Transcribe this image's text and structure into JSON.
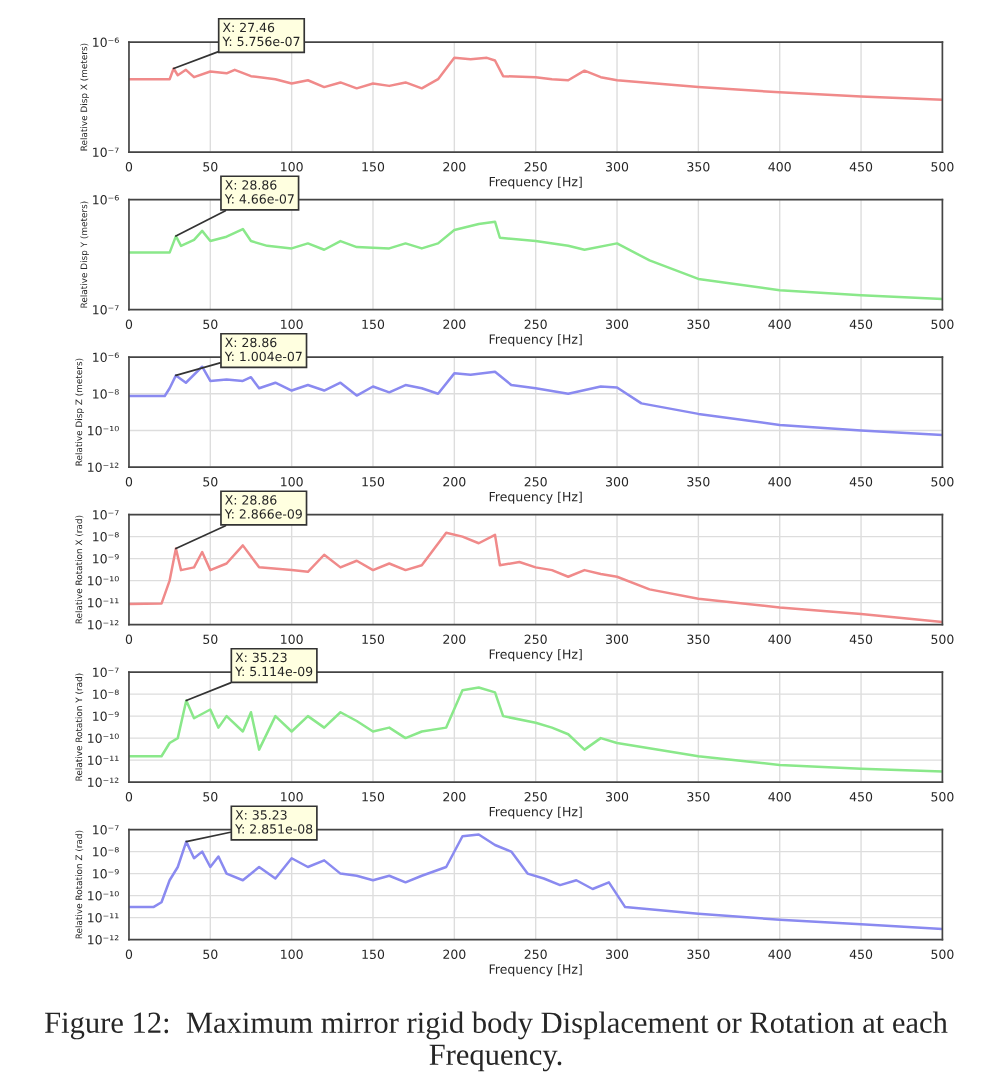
{
  "chart_data": [
    {
      "type": "line",
      "xlabel": "Frequency [Hz]",
      "ylabel": "Relative Disp X (meters)",
      "log": "y",
      "grid": true,
      "xlim": [
        0,
        500
      ],
      "xticks": [
        0,
        50,
        100,
        150,
        200,
        250,
        300,
        350,
        400,
        450,
        500
      ],
      "ylim": [
        1e-07,
        1e-06
      ],
      "yticks": [
        {
          "value": 1e-07,
          "label": "10⁻⁷"
        },
        {
          "value": 1e-06,
          "label": "10⁻⁶"
        }
      ],
      "series": [
        {
          "color": "#f08a8a",
          "x": [
            0,
            25,
            27.46,
            30,
            35,
            40,
            50,
            60,
            65,
            75,
            90,
            100,
            110,
            120,
            130,
            140,
            150,
            160,
            170,
            180,
            190,
            200,
            210,
            220,
            225,
            230,
            250,
            260,
            270,
            280,
            290,
            300,
            350,
            400,
            450,
            500
          ],
          "values": [
            4.6e-07,
            4.6e-07,
            5.756e-07,
            5e-07,
            5.6e-07,
            4.8e-07,
            5.4e-07,
            5.2e-07,
            5.6e-07,
            4.9e-07,
            4.6e-07,
            4.2e-07,
            4.5e-07,
            3.9e-07,
            4.3e-07,
            3.8e-07,
            4.2e-07,
            4e-07,
            4.3e-07,
            3.8e-07,
            4.6e-07,
            7.2e-07,
            7e-07,
            7.2e-07,
            6.8e-07,
            4.9e-07,
            4.8e-07,
            4.6e-07,
            4.5e-07,
            5.5e-07,
            4.8e-07,
            4.5e-07,
            3.9e-07,
            3.5e-07,
            3.2e-07,
            3e-07
          ]
        }
      ],
      "annotations": [
        {
          "text": "X: 27.46\nY: 5.756e-07",
          "x": 27.46,
          "y": 5.756e-07
        }
      ]
    },
    {
      "type": "line",
      "xlabel": "Frequency [Hz]",
      "ylabel": "Relative Disp Y (meters)",
      "log": "y",
      "grid": true,
      "xlim": [
        0,
        500
      ],
      "xticks": [
        0,
        50,
        100,
        150,
        200,
        250,
        300,
        350,
        400,
        450,
        500
      ],
      "ylim": [
        1e-07,
        1e-06
      ],
      "yticks": [
        {
          "value": 1e-07,
          "label": "10⁻⁷"
        },
        {
          "value": 1e-06,
          "label": "10⁻⁶"
        }
      ],
      "series": [
        {
          "color": "#8ae88a",
          "x": [
            0,
            25,
            28.86,
            32,
            40,
            45,
            50,
            60,
            70,
            75,
            85,
            100,
            110,
            120,
            130,
            140,
            160,
            170,
            180,
            190,
            200,
            215,
            225,
            228,
            250,
            270,
            280,
            300,
            320,
            350,
            400,
            450,
            500
          ],
          "values": [
            3.3e-07,
            3.3e-07,
            4.66e-07,
            3.8e-07,
            4.3e-07,
            5.2e-07,
            4.2e-07,
            4.6e-07,
            5.4e-07,
            4.2e-07,
            3.8e-07,
            3.6e-07,
            4e-07,
            3.5e-07,
            4.2e-07,
            3.7e-07,
            3.6e-07,
            4e-07,
            3.6e-07,
            4e-07,
            5.3e-07,
            6e-07,
            6.3e-07,
            4.5e-07,
            4.2e-07,
            3.8e-07,
            3.5e-07,
            4e-07,
            2.8e-07,
            1.9e-07,
            1.5e-07,
            1.35e-07,
            1.25e-07
          ]
        }
      ],
      "annotations": [
        {
          "text": "X: 28.86\nY: 4.66e-07",
          "x": 28.86,
          "y": 4.66e-07
        }
      ]
    },
    {
      "type": "line",
      "xlabel": "Frequency [Hz]",
      "ylabel": "Relative Disp Z (meters)",
      "log": "y",
      "grid": true,
      "xlim": [
        0,
        500
      ],
      "xticks": [
        0,
        50,
        100,
        150,
        200,
        250,
        300,
        350,
        400,
        450,
        500
      ],
      "ylim": [
        1e-12,
        1e-06
      ],
      "yticks": [
        {
          "value": 1e-12,
          "label": "10⁻¹²"
        },
        {
          "value": 1e-10,
          "label": "10⁻¹⁰"
        },
        {
          "value": 1e-08,
          "label": "10⁻⁸"
        },
        {
          "value": 1e-06,
          "label": "10⁻⁶"
        }
      ],
      "series": [
        {
          "color": "#8a8af0",
          "x": [
            0,
            22,
            25,
            28.86,
            35,
            45,
            50,
            60,
            70,
            75,
            80,
            90,
            100,
            110,
            120,
            130,
            140,
            150,
            160,
            170,
            180,
            190,
            200,
            210,
            225,
            235,
            250,
            270,
            290,
            300,
            315,
            350,
            400,
            450,
            500
          ],
          "values": [
            7.6e-09,
            7.6e-09,
            2e-08,
            1.004e-07,
            4e-08,
            3e-07,
            5e-08,
            6e-08,
            5e-08,
            8e-08,
            2e-08,
            4e-08,
            1.5e-08,
            3e-08,
            1.5e-08,
            4e-08,
            8e-09,
            2.5e-08,
            1.2e-08,
            3e-08,
            2e-08,
            1e-08,
            1.3e-07,
            1.1e-07,
            1.6e-07,
            3e-08,
            2e-08,
            1e-08,
            2.5e-08,
            2.2e-08,
            3e-09,
            8e-10,
            2e-10,
            1e-10,
            5.7e-11
          ]
        }
      ],
      "annotations": [
        {
          "text": "X: 28.86\nY: 1.004e-07",
          "x": 28.86,
          "y": 1.004e-07
        }
      ]
    },
    {
      "type": "line",
      "xlabel": "Frequency [Hz]",
      "ylabel": "Relative Rotation X (rad)",
      "log": "y",
      "grid": true,
      "xlim": [
        0,
        500
      ],
      "xticks": [
        0,
        50,
        100,
        150,
        200,
        250,
        300,
        350,
        400,
        450,
        500
      ],
      "ylim": [
        1e-12,
        1e-07
      ],
      "yticks": [
        {
          "value": 1e-12,
          "label": "10⁻¹²"
        },
        {
          "value": 1e-11,
          "label": "10⁻¹¹"
        },
        {
          "value": 1e-10,
          "label": "10⁻¹⁰"
        },
        {
          "value": 1e-09,
          "label": "10⁻⁹"
        },
        {
          "value": 1e-08,
          "label": "10⁻⁸"
        },
        {
          "value": 1e-07,
          "label": "10⁻⁷"
        }
      ],
      "series": [
        {
          "color": "#f08a8a",
          "x": [
            0,
            20,
            25,
            28.86,
            32,
            40,
            45,
            50,
            60,
            70,
            80,
            100,
            110,
            120,
            130,
            140,
            150,
            160,
            170,
            180,
            195,
            205,
            215,
            225,
            228,
            240,
            250,
            260,
            270,
            280,
            290,
            300,
            320,
            350,
            400,
            450,
            500
          ],
          "values": [
            8.7e-12,
            9e-12,
            1e-10,
            2.866e-09,
            3e-10,
            4e-10,
            2e-09,
            3e-10,
            6e-10,
            4e-09,
            4e-10,
            3e-10,
            2.5e-10,
            1.5e-09,
            4e-10,
            8e-10,
            3e-10,
            6e-10,
            3e-10,
            5e-10,
            1.5e-08,
            1e-08,
            5e-09,
            1.2e-08,
            5e-10,
            7e-10,
            4e-10,
            3e-10,
            1.5e-10,
            3e-10,
            2e-10,
            1.5e-10,
            4e-11,
            1.5e-11,
            6e-12,
            3e-12,
            1.3e-12
          ]
        }
      ],
      "annotations": [
        {
          "text": "X: 28.86\nY: 2.866e-09",
          "x": 28.86,
          "y": 2.866e-09
        }
      ]
    },
    {
      "type": "line",
      "xlabel": "Frequency [Hz]",
      "ylabel": "Relative Rotation Y (rad)",
      "log": "y",
      "grid": true,
      "xlim": [
        0,
        500
      ],
      "xticks": [
        0,
        50,
        100,
        150,
        200,
        250,
        300,
        350,
        400,
        450,
        500
      ],
      "ylim": [
        1e-12,
        1e-07
      ],
      "yticks": [
        {
          "value": 1e-12,
          "label": "10⁻¹²"
        },
        {
          "value": 1e-11,
          "label": "10⁻¹¹"
        },
        {
          "value": 1e-10,
          "label": "10⁻¹⁰"
        },
        {
          "value": 1e-09,
          "label": "10⁻⁹"
        },
        {
          "value": 1e-08,
          "label": "10⁻⁸"
        },
        {
          "value": 1e-07,
          "label": "10⁻⁷"
        }
      ],
      "series": [
        {
          "color": "#8ae88a",
          "x": [
            0,
            20,
            25,
            30,
            35.23,
            40,
            50,
            55,
            60,
            70,
            75,
            80,
            90,
            100,
            110,
            120,
            130,
            140,
            150,
            160,
            170,
            180,
            195,
            205,
            215,
            225,
            230,
            250,
            260,
            270,
            280,
            290,
            300,
            350,
            400,
            450,
            500
          ],
          "values": [
            1.5e-11,
            1.5e-11,
            6e-11,
            1e-10,
            5.114e-09,
            8e-10,
            2e-09,
            3e-10,
            1e-09,
            2e-10,
            1.5e-09,
            3e-11,
            1e-09,
            2e-10,
            1e-09,
            3e-10,
            1.5e-09,
            6e-10,
            2e-10,
            3e-10,
            1e-10,
            2e-10,
            3e-10,
            1.5e-08,
            2e-08,
            1.2e-08,
            1e-09,
            5e-10,
            3e-10,
            1.5e-10,
            3e-11,
            1e-10,
            6e-11,
            1.5e-11,
            6e-12,
            4e-12,
            3e-12
          ]
        }
      ],
      "annotations": [
        {
          "text": "X: 35.23\nY: 5.114e-09",
          "x": 35.23,
          "y": 5.114e-09
        }
      ]
    },
    {
      "type": "line",
      "xlabel": "Frequency [Hz]",
      "ylabel": "Relative Rotation Z (rad)",
      "log": "y",
      "grid": true,
      "xlim": [
        0,
        500
      ],
      "xticks": [
        0,
        50,
        100,
        150,
        200,
        250,
        300,
        350,
        400,
        450,
        500
      ],
      "ylim": [
        1e-12,
        1e-07
      ],
      "yticks": [
        {
          "value": 1e-12,
          "label": "10⁻¹²"
        },
        {
          "value": 1e-11,
          "label": "10⁻¹¹"
        },
        {
          "value": 1e-10,
          "label": "10⁻¹⁰"
        },
        {
          "value": 1e-09,
          "label": "10⁻⁹"
        },
        {
          "value": 1e-08,
          "label": "10⁻⁸"
        },
        {
          "value": 1e-07,
          "label": "10⁻⁷"
        }
      ],
      "series": [
        {
          "color": "#8a8af0",
          "x": [
            0,
            15,
            20,
            25,
            30,
            35.23,
            40,
            45,
            50,
            55,
            60,
            70,
            80,
            90,
            100,
            110,
            120,
            130,
            140,
            150,
            160,
            170,
            180,
            195,
            205,
            215,
            225,
            235,
            245,
            255,
            265,
            275,
            285,
            295,
            305,
            350,
            400,
            450,
            500
          ],
          "values": [
            3e-11,
            3e-11,
            5e-11,
            5e-10,
            2e-09,
            2.851e-08,
            5e-09,
            1e-08,
            2e-09,
            6e-09,
            1e-09,
            5e-10,
            2e-09,
            6e-10,
            5e-09,
            2e-09,
            4e-09,
            1e-09,
            8e-10,
            5e-10,
            8e-10,
            4e-10,
            8e-10,
            2e-09,
            5e-08,
            6e-08,
            2e-08,
            1e-08,
            1e-09,
            6e-10,
            3e-10,
            5e-10,
            2e-10,
            4e-10,
            3e-11,
            1.5e-11,
            8e-12,
            5e-12,
            3e-12
          ]
        }
      ],
      "annotations": [
        {
          "text": "X: 35.23\nY: 2.851e-08",
          "x": 35.23,
          "y": 2.851e-08
        },
        "Figure 12:  Maximum mirror rigid body Displacement or Rotation at each Frequency."
      ]
    }
  ]
}
